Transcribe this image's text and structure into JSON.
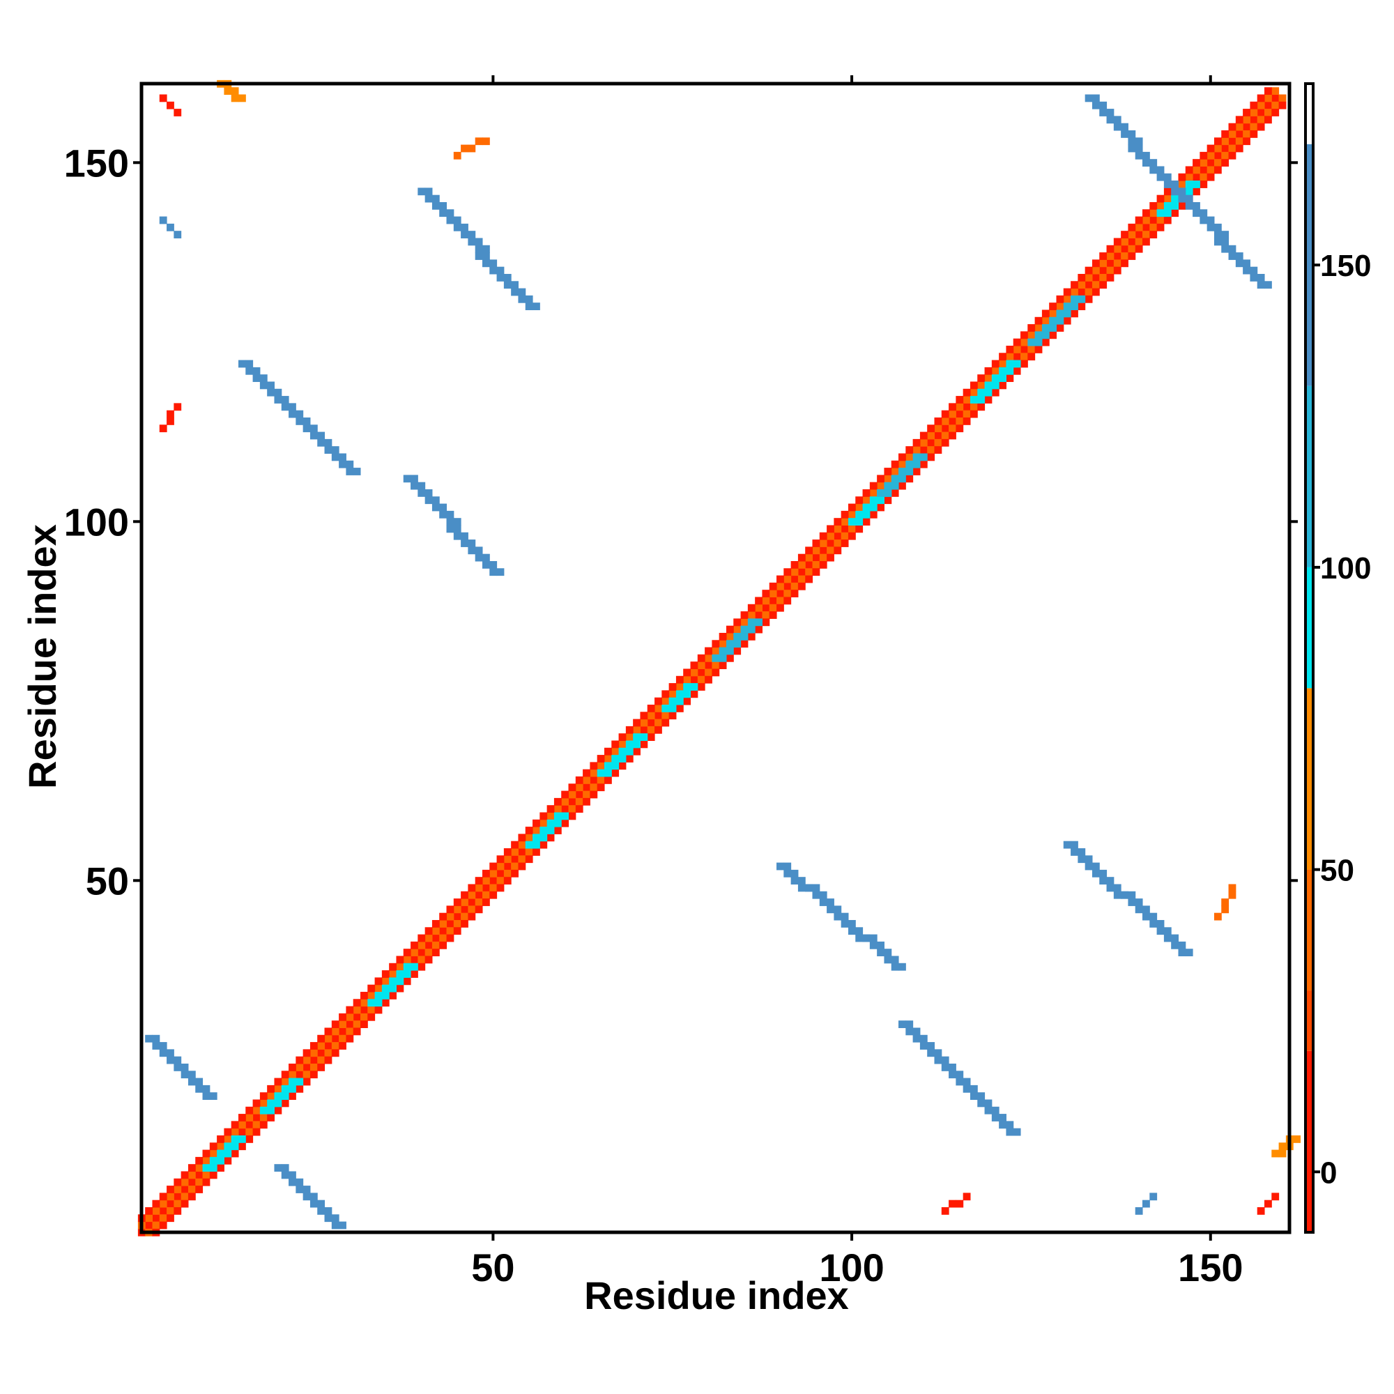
{
  "chart_data": {
    "type": "heatmap",
    "title": "",
    "xlabel": "Residue index",
    "ylabel": "Residue index",
    "xlim": [
      1,
      161
    ],
    "ylim": [
      1,
      161
    ],
    "x_ticks": [
      50,
      100,
      150
    ],
    "y_ticks": [
      50,
      100,
      150
    ],
    "grid": false,
    "colorbar": {
      "range": [
        -10,
        180
      ],
      "ticks": [
        0,
        50,
        100,
        150
      ],
      "stops": [
        {
          "from": -10,
          "to": 20,
          "color": "#ff1a00"
        },
        {
          "from": 20,
          "to": 30,
          "color": "#ff4a00"
        },
        {
          "from": 30,
          "to": 50,
          "color": "#ff6a00"
        },
        {
          "from": 50,
          "to": 80,
          "color": "#ff8c00"
        },
        {
          "from": 80,
          "to": 100,
          "color": "#00e5ee"
        },
        {
          "from": 100,
          "to": 130,
          "color": "#29b5d8"
        },
        {
          "from": 130,
          "to": 170,
          "color": "#4a8ec6"
        },
        {
          "from": 170,
          "to": 180,
          "color": "#ffffff"
        }
      ]
    },
    "regions": [
      {
        "x": [
          1,
          159
        ],
        "y": [
          1,
          159
        ],
        "value": 10,
        "width": 1,
        "kind": "diagonal"
      },
      {
        "x": [
          1,
          159
        ],
        "y": [
          2,
          160
        ],
        "value": 45,
        "width": 1,
        "kind": "diagonal"
      },
      {
        "x": [
          2,
          160
        ],
        "y": [
          1,
          159
        ],
        "value": 45,
        "width": 1,
        "kind": "diagonal"
      },
      {
        "x": [
          1,
          158
        ],
        "y": [
          3,
          160
        ],
        "value": 10,
        "width": 1,
        "kind": "diagonal"
      },
      {
        "x": [
          3,
          160
        ],
        "y": [
          1,
          158
        ],
        "value": 10,
        "width": 1,
        "kind": "diagonal"
      },
      {
        "x": [
          18,
          22
        ],
        "y": [
          18,
          22
        ],
        "value": 90,
        "width": 2
      },
      {
        "x": [
          10,
          14
        ],
        "y": [
          10,
          14
        ],
        "value": 90,
        "width": 2
      },
      {
        "x": [
          33,
          38
        ],
        "y": [
          33,
          38
        ],
        "value": 90,
        "width": 2
      },
      {
        "x": [
          55,
          59
        ],
        "y": [
          55,
          59
        ],
        "value": 95,
        "width": 2
      },
      {
        "x": [
          65,
          70
        ],
        "y": [
          65,
          70
        ],
        "value": 90,
        "width": 2
      },
      {
        "x": [
          74,
          77
        ],
        "y": [
          74,
          77
        ],
        "value": 95,
        "width": 2
      },
      {
        "x": [
          81,
          86
        ],
        "y": [
          81,
          86
        ],
        "value": 100,
        "width": 2
      },
      {
        "x": [
          100,
          104
        ],
        "y": [
          100,
          104
        ],
        "value": 90,
        "width": 2
      },
      {
        "x": [
          104,
          109
        ],
        "y": [
          104,
          109
        ],
        "value": 100,
        "width": 2
      },
      {
        "x": [
          117,
          122
        ],
        "y": [
          117,
          122
        ],
        "value": 90,
        "width": 2
      },
      {
        "x": [
          125,
          131
        ],
        "y": [
          125,
          131
        ],
        "value": 100,
        "width": 2
      },
      {
        "x": [
          143,
          147
        ],
        "y": [
          143,
          147
        ],
        "value": 90,
        "width": 2
      },
      {
        "x": [
          2,
          10
        ],
        "y": [
          28,
          20
        ],
        "value": 140,
        "width": 2
      },
      {
        "x": [
          20,
          28
        ],
        "y": [
          10,
          2
        ],
        "value": 140,
        "width": 2
      },
      {
        "x": [
          15,
          30
        ],
        "y": [
          122,
          107
        ],
        "value": 140,
        "width": 2
      },
      {
        "x": [
          107,
          122
        ],
        "y": [
          30,
          15
        ],
        "value": 140,
        "width": 2
      },
      {
        "x": [
          38,
          50
        ],
        "y": [
          106,
          93
        ],
        "value": 130,
        "width": 2
      },
      {
        "x": [
          90,
          106
        ],
        "y": [
          52,
          38
        ],
        "value": 130,
        "width": 2
      },
      {
        "x": [
          40,
          55
        ],
        "y": [
          146,
          130
        ],
        "value": 140,
        "width": 2
      },
      {
        "x": [
          130,
          146
        ],
        "y": [
          55,
          40
        ],
        "value": 140,
        "width": 2
      },
      {
        "x": [
          133,
          157
        ],
        "y": [
          159,
          133
        ],
        "value": 140,
        "width": 2
      },
      {
        "x": [
          4,
          6
        ],
        "y": [
          159,
          157
        ],
        "value": 10,
        "width": 1
      },
      {
        "x": [
          157,
          159
        ],
        "y": [
          4,
          6
        ],
        "value": 10,
        "width": 1
      },
      {
        "x": [
          12,
          14
        ],
        "y": [
          161,
          159
        ],
        "value": 60,
        "width": 2
      },
      {
        "x": [
          159,
          161
        ],
        "y": [
          12,
          14
        ],
        "value": 60,
        "width": 2
      },
      {
        "x": [
          45,
          49
        ],
        "y": [
          151,
          153
        ],
        "value": 40,
        "width": 1
      },
      {
        "x": [
          151,
          153
        ],
        "y": [
          45,
          49
        ],
        "value": 40,
        "width": 1
      },
      {
        "x": [
          4,
          6
        ],
        "y": [
          113,
          116
        ],
        "value": 10,
        "width": 1
      },
      {
        "x": [
          113,
          116
        ],
        "y": [
          4,
          6
        ],
        "value": 10,
        "width": 1
      },
      {
        "x": [
          4,
          6
        ],
        "y": [
          142,
          140
        ],
        "value": 140,
        "width": 1
      },
      {
        "x": [
          140,
          142
        ],
        "y": [
          4,
          6
        ],
        "value": 140,
        "width": 1
      }
    ]
  }
}
